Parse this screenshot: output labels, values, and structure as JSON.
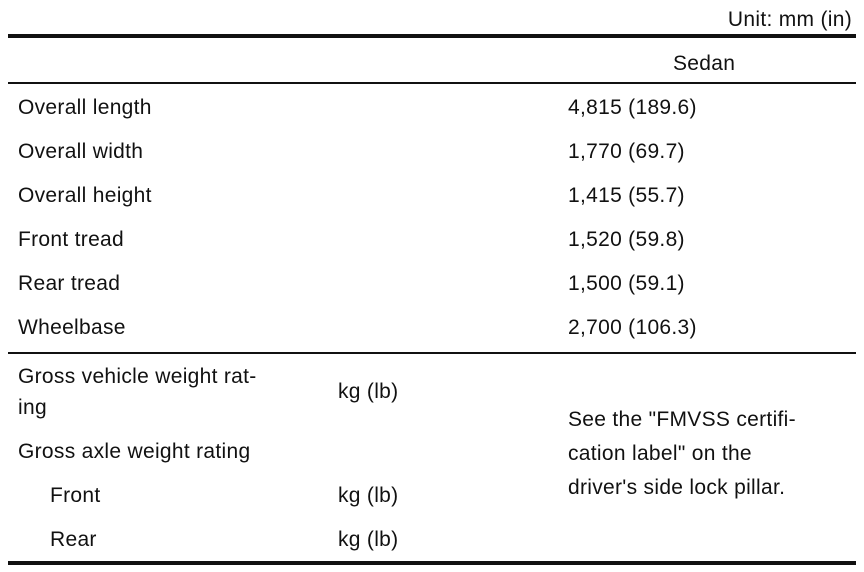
{
  "unit_label": "Unit: mm (in)",
  "column_header": "Sedan",
  "dimensions": [
    {
      "label": "Overall length",
      "value": "4,815 (189.6)"
    },
    {
      "label": "Overall width",
      "value": "1,770 (69.7)"
    },
    {
      "label": "Overall height",
      "value": "1,415 (55.7)"
    },
    {
      "label": "Front tread",
      "value": "1,520 (59.8)"
    },
    {
      "label": "Rear tread",
      "value": "1,500 (59.1)"
    },
    {
      "label": "Wheelbase",
      "value": "2,700 (106.3)"
    }
  ],
  "weights": {
    "gvwr_line1": "Gross vehicle weight rat-",
    "gvwr_line2": "ing",
    "gvwr_unit": "kg (lb)",
    "gawr_label": "Gross axle weight rating",
    "front_label": "Front",
    "front_unit": "kg (lb)",
    "rear_label": "Rear",
    "rear_unit": "kg (lb)",
    "note_line1": "See the \"FMVSS certifi-",
    "note_line2": "cation label\" on the",
    "note_line3": "driver's side lock pillar."
  }
}
